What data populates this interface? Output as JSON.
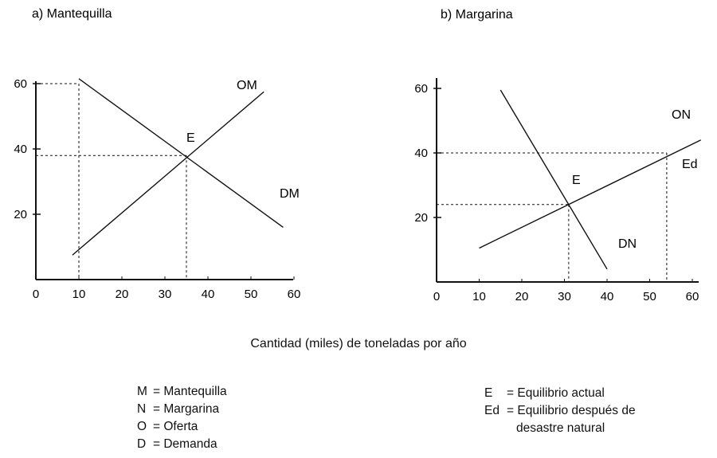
{
  "chart_data": [
    {
      "type": "line",
      "title": "a) Mantequilla",
      "xlim": [
        0,
        60
      ],
      "ylim": [
        0,
        60
      ],
      "x_ticks": [
        "0",
        "10",
        "20",
        "30",
        "40",
        "50",
        "60"
      ],
      "y_ticks": [
        "20",
        "40",
        "60"
      ],
      "series": [
        {
          "name": "OM",
          "points": [
            [
              8.5,
              7.5
            ],
            [
              53,
              57.5
            ]
          ]
        },
        {
          "name": "DM",
          "points": [
            [
              10,
              61.5
            ],
            [
              57.5,
              16
            ]
          ]
        }
      ],
      "labels": {
        "OM": "OM",
        "DM": "DM",
        "E": "E"
      },
      "equilibrium": {
        "label": "E",
        "x": 35,
        "y": 38
      },
      "guides": [
        {
          "x": 10,
          "y": 60
        },
        {
          "x": 35,
          "y": 38
        }
      ]
    },
    {
      "type": "line",
      "title": "b) Margarina",
      "xlim": [
        0,
        60
      ],
      "ylim": [
        0,
        60
      ],
      "x_ticks": [
        "0",
        "10",
        "20",
        "30",
        "40",
        "50",
        "60"
      ],
      "y_ticks": [
        "20",
        "40",
        "60"
      ],
      "series": [
        {
          "name": "ON",
          "points": [
            [
              10,
              10.5
            ],
            [
              62,
              44
            ]
          ]
        },
        {
          "name": "DN",
          "points": [
            [
              15,
              59.5
            ],
            [
              40,
              4
            ]
          ]
        }
      ],
      "labels": {
        "ON": "ON",
        "DN": "DN",
        "E": "E",
        "Ed": "Ed"
      },
      "equilibrium": {
        "label": "E",
        "x": 31,
        "y": 24
      },
      "shifted_equilibrium": {
        "label": "Ed",
        "x": 54,
        "y": 40
      },
      "guides": [
        {
          "x": 31,
          "y": 24
        },
        {
          "x": 54,
          "y": 40
        }
      ]
    }
  ],
  "xaxis_caption": "Cantidad (miles) de toneladas por año",
  "legend_left": [
    {
      "key": "M",
      "text": "= Mantequilla"
    },
    {
      "key": "N",
      "text": "= Margarina"
    },
    {
      "key": "O",
      "text": "= Oferta"
    },
    {
      "key": "D",
      "text": "= Demanda"
    }
  ],
  "legend_right": [
    {
      "key": "E",
      "text": "= Equilibrio actual"
    },
    {
      "key": "Ed",
      "text": "= Equilibrio después de",
      "cont": "desastre natural"
    }
  ]
}
